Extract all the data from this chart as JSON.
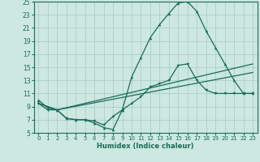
{
  "xlabel": "Humidex (Indice chaleur)",
  "bg_color": "#cce8e0",
  "grid_color": "#aacfc8",
  "line_color": "#1a6b5a",
  "xlim": [
    -0.5,
    23.5
  ],
  "ylim": [
    5,
    25
  ],
  "xticks": [
    0,
    1,
    2,
    3,
    4,
    5,
    6,
    7,
    8,
    9,
    10,
    11,
    12,
    13,
    14,
    15,
    16,
    17,
    18,
    19,
    20,
    21,
    22,
    23
  ],
  "yticks": [
    5,
    7,
    9,
    11,
    13,
    15,
    17,
    19,
    21,
    23,
    25
  ],
  "line1_x": [
    0,
    1,
    2,
    3,
    4,
    5,
    6,
    7,
    8,
    9,
    10,
    11,
    12,
    13,
    14,
    15,
    16,
    17,
    18,
    19,
    20,
    21,
    22,
    23
  ],
  "line1_y": [
    10,
    8.8,
    8.5,
    7.2,
    7.0,
    7.0,
    6.5,
    5.8,
    5.5,
    8.5,
    13.5,
    16.5,
    19.5,
    21.5,
    23.2,
    24.8,
    25.0,
    23.5,
    20.5,
    18.0,
    15.5,
    13.0,
    11.0,
    11.0
  ],
  "line2_x": [
    0,
    2,
    23
  ],
  "line2_y": [
    9.5,
    8.5,
    15.5
  ],
  "line3_x": [
    0,
    2,
    23
  ],
  "line3_y": [
    9.5,
    8.5,
    14.2
  ],
  "line4_x": [
    0,
    1,
    2,
    3,
    4,
    5,
    6,
    7,
    8,
    9,
    10,
    11,
    12,
    13,
    14,
    15,
    16,
    17,
    18,
    19,
    20,
    21,
    22,
    23
  ],
  "line4_y": [
    9.5,
    8.5,
    8.5,
    7.2,
    7.0,
    7.0,
    6.8,
    6.2,
    7.5,
    8.5,
    9.5,
    10.5,
    12.0,
    12.5,
    13.0,
    15.3,
    15.5,
    13.0,
    11.5,
    11.0,
    11.0,
    11.0,
    11.0,
    11.0
  ]
}
